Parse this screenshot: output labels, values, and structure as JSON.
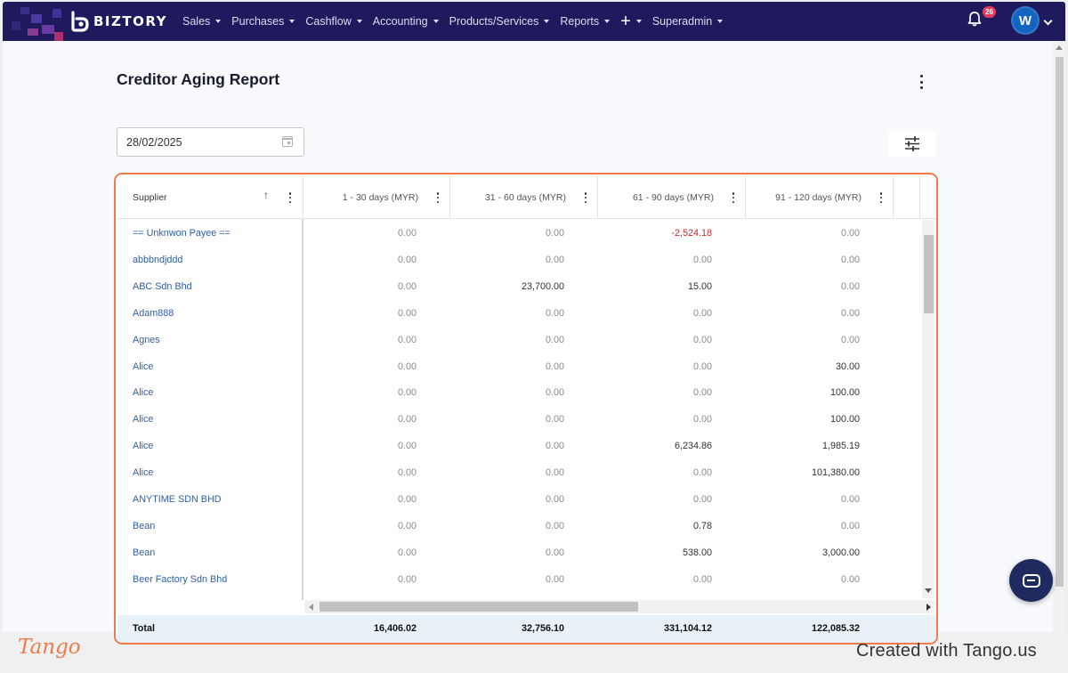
{
  "brand": {
    "name": "BIZTORY",
    "logo_letter": "b"
  },
  "nav": {
    "items": [
      {
        "label": "Sales"
      },
      {
        "label": "Purchases"
      },
      {
        "label": "Cashflow"
      },
      {
        "label": "Accounting"
      },
      {
        "label": "Products/Services"
      },
      {
        "label": "Reports"
      },
      {
        "label": "+"
      },
      {
        "label": "Superadmin"
      }
    ],
    "notification_count": "26",
    "avatar_initial": "W"
  },
  "page": {
    "title": "Creditor Aging Report",
    "date_value": "28/02/2025"
  },
  "table": {
    "columns": [
      {
        "label": "Supplier"
      },
      {
        "label": "1 - 30 days (MYR)"
      },
      {
        "label": "31 - 60 days (MYR)"
      },
      {
        "label": "61 - 90 days (MYR)"
      },
      {
        "label": "91 - 120 days (MYR)"
      }
    ],
    "rows": [
      {
        "supplier": "== Unknwon Payee ==",
        "d30": "0.00",
        "d60": "0.00",
        "d90": "-2,524.18",
        "d120": "0.00"
      },
      {
        "supplier": "abbbndjddd",
        "d30": "0.00",
        "d60": "0.00",
        "d90": "0.00",
        "d120": "0.00"
      },
      {
        "supplier": "ABC Sdn Bhd",
        "d30": "0.00",
        "d60": "23,700.00",
        "d90": "15.00",
        "d120": "0.00"
      },
      {
        "supplier": "Adam888",
        "d30": "0.00",
        "d60": "0.00",
        "d90": "0.00",
        "d120": "0.00"
      },
      {
        "supplier": "Agnes",
        "d30": "0.00",
        "d60": "0.00",
        "d90": "0.00",
        "d120": "0.00"
      },
      {
        "supplier": "Alice",
        "d30": "0.00",
        "d60": "0.00",
        "d90": "0.00",
        "d120": "30.00"
      },
      {
        "supplier": "Alice",
        "d30": "0.00",
        "d60": "0.00",
        "d90": "0.00",
        "d120": "100.00"
      },
      {
        "supplier": "Alice",
        "d30": "0.00",
        "d60": "0.00",
        "d90": "0.00",
        "d120": "100.00"
      },
      {
        "supplier": "Alice",
        "d30": "0.00",
        "d60": "0.00",
        "d90": "6,234.86",
        "d120": "1,985.19"
      },
      {
        "supplier": "Alice",
        "d30": "0.00",
        "d60": "0.00",
        "d90": "0.00",
        "d120": "101,380.00"
      },
      {
        "supplier": "ANYTIME SDN BHD",
        "d30": "0.00",
        "d60": "0.00",
        "d90": "0.00",
        "d120": "0.00"
      },
      {
        "supplier": "Bean",
        "d30": "0.00",
        "d60": "0.00",
        "d90": "0.78",
        "d120": "0.00"
      },
      {
        "supplier": "Bean",
        "d30": "0.00",
        "d60": "0.00",
        "d90": "538.00",
        "d120": "3,000.00"
      },
      {
        "supplier": "Beer Factory Sdn Bhd",
        "d30": "0.00",
        "d60": "0.00",
        "d90": "0.00",
        "d120": "0.00"
      }
    ],
    "total": {
      "label": "Total",
      "d30": "16,406.02",
      "d60": "32,756.10",
      "d90": "331,104.12",
      "d120": "122,085.32"
    }
  },
  "footer": {
    "tango": "Tango",
    "created_with": "Created with Tango.us"
  },
  "colors": {
    "nav_bg": "#1f1a5e",
    "highlight_border": "#f07a4a",
    "link": "#2f5fa8",
    "negative": "#c62828",
    "badge": "#e8395a"
  },
  "icons": [
    "bell-icon",
    "calendar-icon",
    "filter-sliders-icon",
    "kebab-menu-icon",
    "sort-up-arrow-icon",
    "chat-icon"
  ]
}
